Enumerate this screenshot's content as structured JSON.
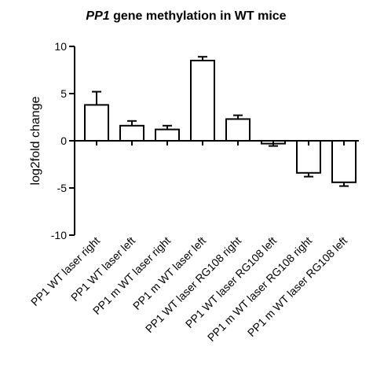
{
  "chart_data": {
    "type": "bar",
    "title_italic": "PP1",
    "title_rest": " gene methylation in WT mice",
    "xlabel": "",
    "ylabel": "log2fold change",
    "ylim": [
      -10,
      10
    ],
    "yticks": [
      -10,
      -5,
      0,
      5,
      10
    ],
    "grid": false,
    "categories": [
      "PP1 WT laser right",
      "PP1 WT laser left",
      "PP1 m WT laser right",
      "PP1 m WT laser left",
      "PP1 WT laser RG108 right",
      "PP1 WT laser RG108 left",
      "PP1 m WT laser RG108 right",
      "PP1 m WT laser RG108 left"
    ],
    "values": [
      3.8,
      1.6,
      1.2,
      8.5,
      2.3,
      -0.3,
      -3.4,
      -4.4
    ],
    "errors": [
      1.4,
      0.5,
      0.4,
      0.4,
      0.4,
      0.25,
      0.4,
      0.4
    ],
    "colors": {
      "bar_fill": "#ffffff",
      "bar_stroke": "#000000",
      "axis": "#000000"
    }
  }
}
